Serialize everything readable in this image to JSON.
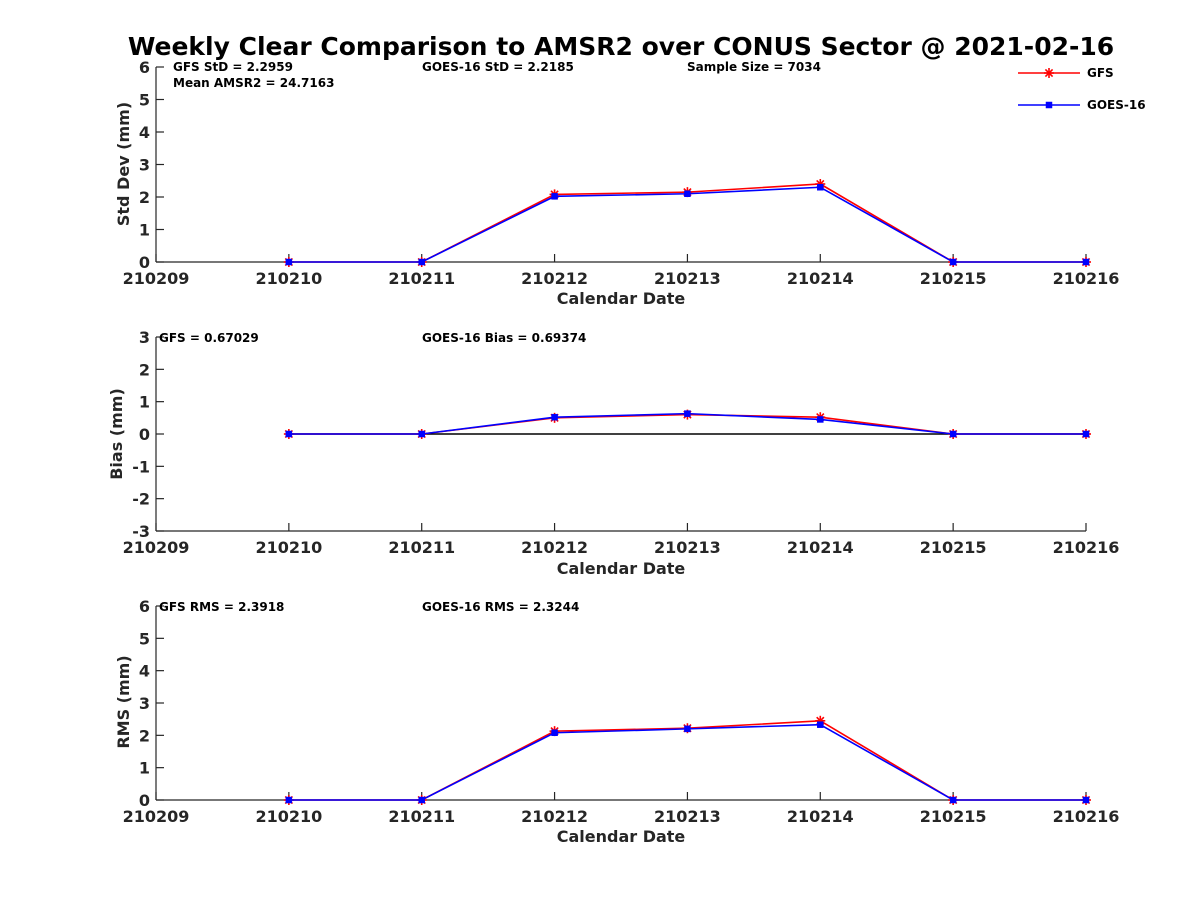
{
  "title": "Weekly Clear Comparison to AMSR2 over CONUS Sector @ 2021-02-16",
  "colors": {
    "GFS": "#ff0000",
    "GOES-16": "#0000ff",
    "zero_line": "#000000",
    "axis": "#262626"
  },
  "legend": {
    "placement": "top-right",
    "entries": [
      {
        "name": "GFS",
        "marker": "asterisk"
      },
      {
        "name": "GOES-16",
        "marker": "square"
      }
    ]
  },
  "chart_data": [
    {
      "type": "line",
      "ylabel": "Std Dev (mm)",
      "xlabel": "Calendar Date",
      "ylim": [
        0,
        6
      ],
      "yticks": [
        "0",
        "1",
        "2",
        "3",
        "4",
        "5",
        "6"
      ],
      "x": [
        "210209",
        "210210",
        "210211",
        "210212",
        "210213",
        "210214",
        "210215",
        "210216"
      ],
      "zero_line": false,
      "annotations": [
        "GFS StD = 2.2959",
        "GOES-16 StD = 2.2185",
        "Sample Size = 7034",
        "Mean AMSR2 = 24.7163"
      ],
      "series": [
        {
          "name": "GFS",
          "x": [
            "210210",
            "210211",
            "210212",
            "210213",
            "210214",
            "210215",
            "210216"
          ],
          "values": [
            0,
            0,
            2.08,
            2.15,
            2.4,
            0,
            0
          ]
        },
        {
          "name": "GOES-16",
          "x": [
            "210210",
            "210211",
            "210212",
            "210213",
            "210214",
            "210215",
            "210216"
          ],
          "values": [
            0,
            0,
            2.02,
            2.1,
            2.3,
            0,
            0
          ]
        }
      ]
    },
    {
      "type": "line",
      "ylabel": "Bias (mm)",
      "xlabel": "Calendar Date",
      "ylim": [
        -3,
        3
      ],
      "yticks": [
        "-3",
        "-2",
        "-1",
        "0",
        "1",
        "2",
        "3"
      ],
      "x": [
        "210209",
        "210210",
        "210211",
        "210212",
        "210213",
        "210214",
        "210215",
        "210216"
      ],
      "zero_line": true,
      "annotations": [
        "GFS = 0.67029",
        "GOES-16 Bias  = 0.69374"
      ],
      "series": [
        {
          "name": "GFS",
          "x": [
            "210210",
            "210211",
            "210212",
            "210213",
            "210214",
            "210215",
            "210216"
          ],
          "values": [
            0,
            0,
            0.5,
            0.6,
            0.52,
            0,
            0
          ]
        },
        {
          "name": "GOES-16",
          "x": [
            "210210",
            "210211",
            "210212",
            "210213",
            "210214",
            "210215",
            "210216"
          ],
          "values": [
            0,
            0,
            0.52,
            0.63,
            0.45,
            0,
            0
          ]
        }
      ]
    },
    {
      "type": "line",
      "ylabel": "RMS (mm)",
      "xlabel": "Calendar Date",
      "ylim": [
        0,
        6
      ],
      "yticks": [
        "0",
        "1",
        "2",
        "3",
        "4",
        "5",
        "6"
      ],
      "x": [
        "210209",
        "210210",
        "210211",
        "210212",
        "210213",
        "210214",
        "210215",
        "210216"
      ],
      "zero_line": false,
      "annotations": [
        "GFS RMS = 2.3918",
        "GOES-16 RMS = 2.3244"
      ],
      "series": [
        {
          "name": "GFS",
          "x": [
            "210210",
            "210211",
            "210212",
            "210213",
            "210214",
            "210215",
            "210216"
          ],
          "values": [
            0,
            0,
            2.13,
            2.22,
            2.45,
            0,
            0
          ]
        },
        {
          "name": "GOES-16",
          "x": [
            "210210",
            "210211",
            "210212",
            "210213",
            "210214",
            "210215",
            "210216"
          ],
          "values": [
            0,
            0,
            2.08,
            2.2,
            2.33,
            0,
            0
          ]
        }
      ]
    }
  ]
}
